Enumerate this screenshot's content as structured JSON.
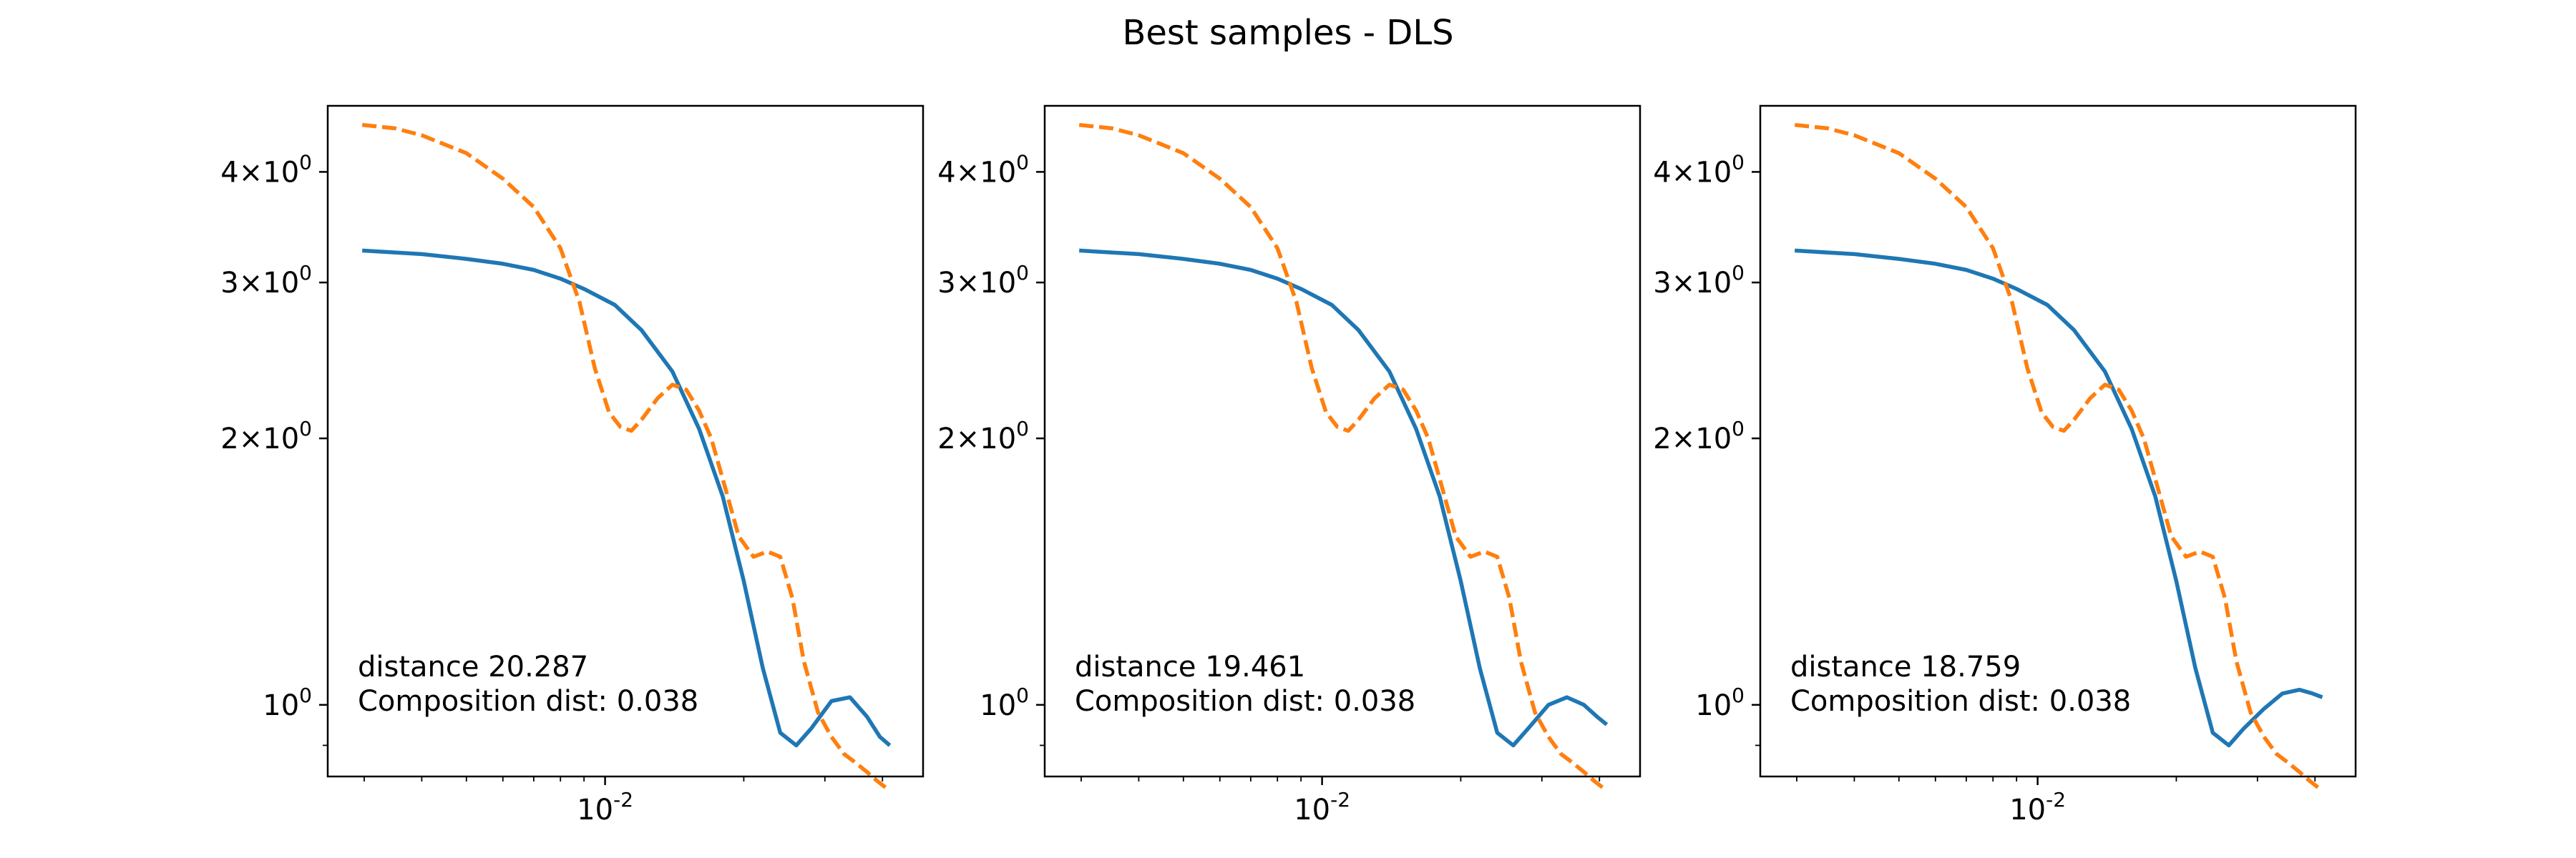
{
  "figure": {
    "title": "Best samples - DLS"
  },
  "colors": {
    "series_0": "#1f77b4",
    "series_1": "#ff7f0e"
  },
  "chart_data": [
    {
      "type": "line",
      "x_scale": "log",
      "y_scale": "log",
      "xlim": [
        0.0025,
        0.049
      ],
      "ylim": [
        0.83,
        4.75
      ],
      "x_major_ticks": [
        {
          "value": 0.01,
          "label": "10^-2"
        }
      ],
      "y_major_ticks": [
        {
          "value": 1,
          "label": "10^0"
        },
        {
          "value": 2,
          "label": "2×10^0"
        },
        {
          "value": 3,
          "label": "3×10^0"
        },
        {
          "value": 4,
          "label": "4×10^0"
        }
      ],
      "grid": false,
      "annotation": [
        "distance 20.287",
        "Composition dist: 0.038"
      ],
      "series": [
        {
          "style": "solid",
          "x": [
            0.00297,
            0.004,
            0.005,
            0.006,
            0.007,
            0.008,
            0.009,
            0.0105,
            0.012,
            0.014,
            0.016,
            0.018,
            0.02,
            0.022,
            0.024,
            0.026,
            0.028,
            0.031,
            0.034,
            0.037,
            0.0395,
            0.0415
          ],
          "y": [
            3.26,
            3.23,
            3.19,
            3.15,
            3.1,
            3.03,
            2.95,
            2.83,
            2.65,
            2.38,
            2.05,
            1.72,
            1.38,
            1.1,
            0.93,
            0.9,
            0.94,
            1.01,
            1.02,
            0.97,
            0.92,
            0.9
          ]
        },
        {
          "style": "dashed",
          "x": [
            0.00297,
            0.0035,
            0.004,
            0.005,
            0.006,
            0.007,
            0.008,
            0.0088,
            0.0095,
            0.0102,
            0.0108,
            0.0114,
            0.012,
            0.013,
            0.014,
            0.015,
            0.016,
            0.017,
            0.018,
            0.0195,
            0.021,
            0.0225,
            0.024,
            0.0255,
            0.027,
            0.029,
            0.031,
            0.033,
            0.035,
            0.037,
            0.039,
            0.0415
          ],
          "y": [
            4.52,
            4.48,
            4.4,
            4.2,
            3.93,
            3.65,
            3.28,
            2.85,
            2.4,
            2.14,
            2.06,
            2.04,
            2.1,
            2.22,
            2.3,
            2.27,
            2.15,
            2.0,
            1.8,
            1.55,
            1.47,
            1.49,
            1.47,
            1.32,
            1.12,
            0.98,
            0.92,
            0.88,
            0.86,
            0.84,
            0.82,
            0.8
          ]
        }
      ]
    },
    {
      "type": "line",
      "x_scale": "log",
      "y_scale": "log",
      "xlim": [
        0.0025,
        0.049
      ],
      "ylim": [
        0.83,
        4.75
      ],
      "x_major_ticks": [
        {
          "value": 0.01,
          "label": "10^-2"
        }
      ],
      "y_major_ticks": [
        {
          "value": 1,
          "label": "10^0"
        },
        {
          "value": 2,
          "label": "2×10^0"
        },
        {
          "value": 3,
          "label": "3×10^0"
        },
        {
          "value": 4,
          "label": "4×10^0"
        }
      ],
      "grid": false,
      "annotation": [
        "distance 19.461",
        "Composition dist: 0.038"
      ],
      "series": [
        {
          "style": "solid",
          "x": [
            0.00297,
            0.004,
            0.005,
            0.006,
            0.007,
            0.008,
            0.009,
            0.0105,
            0.012,
            0.014,
            0.016,
            0.018,
            0.02,
            0.022,
            0.024,
            0.026,
            0.028,
            0.031,
            0.034,
            0.037,
            0.0395,
            0.0415
          ],
          "y": [
            3.26,
            3.23,
            3.19,
            3.15,
            3.1,
            3.03,
            2.95,
            2.83,
            2.65,
            2.38,
            2.05,
            1.72,
            1.38,
            1.1,
            0.93,
            0.9,
            0.94,
            1.0,
            1.02,
            1.0,
            0.97,
            0.95
          ]
        },
        {
          "style": "dashed",
          "x": [
            0.00297,
            0.0035,
            0.004,
            0.005,
            0.006,
            0.007,
            0.008,
            0.0088,
            0.0095,
            0.0102,
            0.0108,
            0.0114,
            0.012,
            0.013,
            0.014,
            0.015,
            0.016,
            0.017,
            0.018,
            0.0195,
            0.021,
            0.0225,
            0.024,
            0.0255,
            0.027,
            0.029,
            0.031,
            0.033,
            0.035,
            0.037,
            0.039,
            0.0415
          ],
          "y": [
            4.52,
            4.48,
            4.4,
            4.2,
            3.93,
            3.65,
            3.28,
            2.85,
            2.4,
            2.14,
            2.06,
            2.04,
            2.1,
            2.22,
            2.3,
            2.27,
            2.15,
            2.0,
            1.8,
            1.55,
            1.47,
            1.49,
            1.47,
            1.32,
            1.12,
            0.98,
            0.92,
            0.88,
            0.86,
            0.84,
            0.82,
            0.8
          ]
        }
      ]
    },
    {
      "type": "line",
      "x_scale": "log",
      "y_scale": "log",
      "xlim": [
        0.0025,
        0.049
      ],
      "ylim": [
        0.83,
        4.75
      ],
      "x_major_ticks": [
        {
          "value": 0.01,
          "label": "10^-2"
        }
      ],
      "y_major_ticks": [
        {
          "value": 1,
          "label": "10^0"
        },
        {
          "value": 2,
          "label": "2×10^0"
        },
        {
          "value": 3,
          "label": "3×10^0"
        },
        {
          "value": 4,
          "label": "4×10^0"
        }
      ],
      "grid": false,
      "annotation": [
        "distance 18.759",
        "Composition dist: 0.038"
      ],
      "series": [
        {
          "style": "solid",
          "x": [
            0.00297,
            0.004,
            0.005,
            0.006,
            0.007,
            0.008,
            0.009,
            0.0105,
            0.012,
            0.014,
            0.016,
            0.018,
            0.02,
            0.022,
            0.024,
            0.026,
            0.028,
            0.031,
            0.034,
            0.037,
            0.0395,
            0.0415
          ],
          "y": [
            3.26,
            3.23,
            3.19,
            3.15,
            3.1,
            3.03,
            2.95,
            2.83,
            2.65,
            2.38,
            2.05,
            1.72,
            1.38,
            1.1,
            0.93,
            0.9,
            0.94,
            0.99,
            1.03,
            1.04,
            1.03,
            1.02
          ]
        },
        {
          "style": "dashed",
          "x": [
            0.00297,
            0.0035,
            0.004,
            0.005,
            0.006,
            0.007,
            0.008,
            0.0088,
            0.0095,
            0.0102,
            0.0108,
            0.0114,
            0.012,
            0.013,
            0.014,
            0.015,
            0.016,
            0.017,
            0.018,
            0.0195,
            0.021,
            0.0225,
            0.024,
            0.0255,
            0.027,
            0.029,
            0.031,
            0.033,
            0.035,
            0.037,
            0.039,
            0.0415
          ],
          "y": [
            4.52,
            4.48,
            4.4,
            4.2,
            3.93,
            3.65,
            3.28,
            2.85,
            2.4,
            2.14,
            2.06,
            2.04,
            2.1,
            2.22,
            2.3,
            2.27,
            2.15,
            2.0,
            1.8,
            1.55,
            1.47,
            1.49,
            1.47,
            1.32,
            1.12,
            0.98,
            0.92,
            0.88,
            0.86,
            0.84,
            0.82,
            0.8
          ]
        }
      ]
    }
  ]
}
